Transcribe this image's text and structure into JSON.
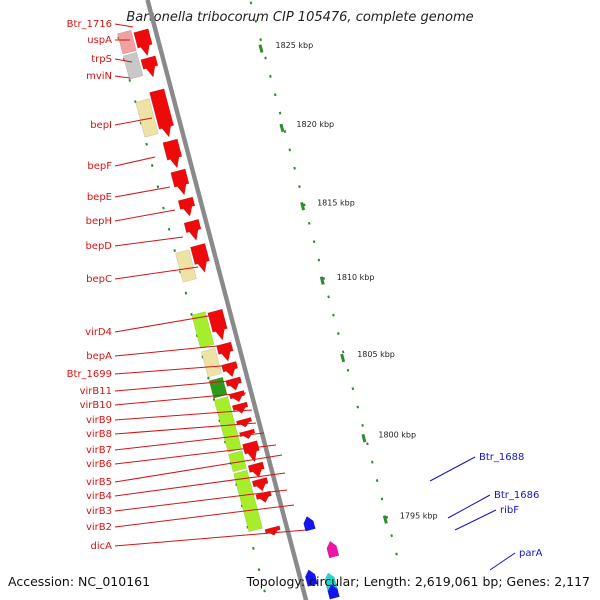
{
  "title": "Bartonella tribocorum CIP 105476, complete genome",
  "footer": {
    "accession": "Accession: NC_010161",
    "topology": "Topology: circular; Length: 2,619,061 bp; Genes: 2,117"
  },
  "colors": {
    "backbone": "#8a8a8a",
    "forward_label": "#d41414",
    "reverse_label": "#1414c8",
    "cds_red": "#ee0a0a",
    "pseudo_tan": "#eee2a4",
    "trna_grey": "#c8c8c8",
    "vir_green": "#a6ee2c",
    "dark_green": "#2e9a1c",
    "blue": "#1414ee",
    "magenta": "#ee14a8",
    "cyan": "#22d6d6",
    "pink": "#f3a0a0",
    "tick_green": "#2e8b2e"
  },
  "ticks": [
    {
      "label": "1825 kbp"
    },
    {
      "label": "1820 kbp"
    },
    {
      "label": "1815 kbp"
    },
    {
      "label": "1810 kbp"
    },
    {
      "label": "1805 kbp"
    },
    {
      "label": "1800 kbp"
    },
    {
      "label": "1795 kbp"
    }
  ],
  "labels_forward": [
    {
      "name": "Btr_1716"
    },
    {
      "name": "uspA"
    },
    {
      "name": "trpS"
    },
    {
      "name": "mviN"
    },
    {
      "name": "bepI"
    },
    {
      "name": "bepF"
    },
    {
      "name": "bepE"
    },
    {
      "name": "bepH"
    },
    {
      "name": "bepD"
    },
    {
      "name": "bepC"
    },
    {
      "name": "virD4"
    },
    {
      "name": "bepA"
    },
    {
      "name": "Btr_1699"
    },
    {
      "name": "virB11"
    },
    {
      "name": "virB10"
    },
    {
      "name": "virB9"
    },
    {
      "name": "virB8"
    },
    {
      "name": "virB7"
    },
    {
      "name": "virB6"
    },
    {
      "name": "virB5"
    },
    {
      "name": "virB4"
    },
    {
      "name": "virB3"
    },
    {
      "name": "virB2"
    },
    {
      "name": "dicA"
    }
  ],
  "labels_reverse": [
    {
      "name": "Btr_1688"
    },
    {
      "name": "Btr_1686"
    },
    {
      "name": "ribF"
    },
    {
      "name": "parA"
    }
  ]
}
